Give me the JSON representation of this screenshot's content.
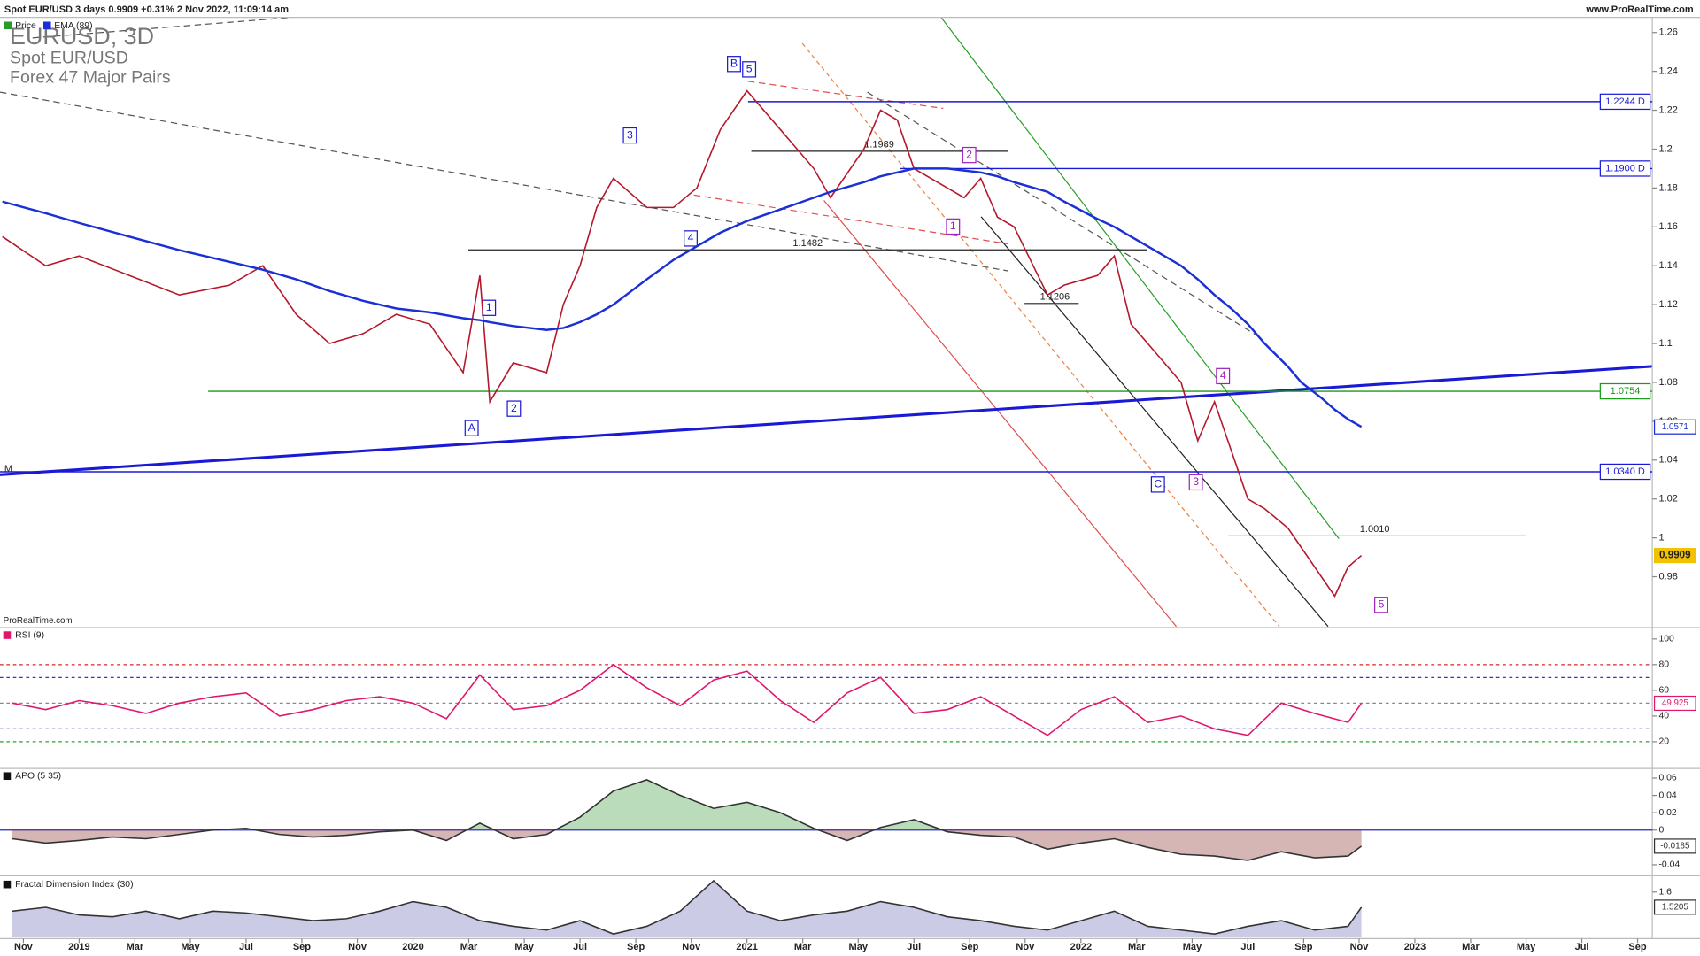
{
  "header": {
    "text": "Spot EUR/USD 3 days 0.9909 +0.31% 2 Nov 2022, 11:09:14 am",
    "site": "www.ProRealTime.com",
    "watermark": "ProRealTime.com"
  },
  "chart_data": [
    {
      "type": "line",
      "title": "EURUSD, 3D",
      "subtitles": [
        "Spot EUR/USD",
        "Forex 47 Major Pairs"
      ],
      "marker": "M",
      "x": [
        2018.77,
        2018.9,
        2019.0,
        2019.15,
        2019.3,
        2019.45,
        2019.55,
        2019.65,
        2019.75,
        2019.85,
        2019.95,
        2020.05,
        2020.15,
        2020.2,
        2020.23,
        2020.3,
        2020.4,
        2020.45,
        2020.5,
        2020.55,
        2020.6,
        2020.7,
        2020.78,
        2020.85,
        2020.92,
        2021.0,
        2021.1,
        2021.2,
        2021.25,
        2021.35,
        2021.4,
        2021.45,
        2021.5,
        2021.6,
        2021.65,
        2021.7,
        2021.75,
        2021.8,
        2021.9,
        2021.95,
        2022.05,
        2022.1,
        2022.15,
        2022.2,
        2022.3,
        2022.35,
        2022.4,
        2022.45,
        2022.5,
        2022.55,
        2022.62,
        2022.66,
        2022.72,
        2022.76,
        2022.8,
        2022.84
      ],
      "series": [
        {
          "name": "Price",
          "color": "#b5172b",
          "label_bg": "#f2c200",
          "values": [
            1.155,
            1.14,
            1.145,
            1.135,
            1.125,
            1.13,
            1.14,
            1.115,
            1.1,
            1.105,
            1.115,
            1.11,
            1.085,
            1.135,
            1.07,
            1.09,
            1.085,
            1.12,
            1.14,
            1.17,
            1.185,
            1.17,
            1.17,
            1.18,
            1.21,
            1.23,
            1.21,
            1.19,
            1.175,
            1.2,
            1.22,
            1.215,
            1.19,
            1.18,
            1.175,
            1.185,
            1.165,
            1.16,
            1.125,
            1.13,
            1.135,
            1.145,
            1.11,
            1.1,
            1.08,
            1.05,
            1.07,
            1.045,
            1.02,
            1.015,
            1.005,
            0.995,
            0.98,
            0.97,
            0.985,
            0.9909
          ]
        },
        {
          "name": "EMA (89)",
          "color": "#1b2fd6",
          "values": [
            1.173,
            1.167,
            1.162,
            1.155,
            1.148,
            1.142,
            1.138,
            1.133,
            1.127,
            1.122,
            1.118,
            1.116,
            1.113,
            1.112,
            1.111,
            1.109,
            1.107,
            1.108,
            1.111,
            1.115,
            1.12,
            1.133,
            1.143,
            1.15,
            1.157,
            1.163,
            1.169,
            1.175,
            1.178,
            1.183,
            1.186,
            1.188,
            1.19,
            1.19,
            1.189,
            1.188,
            1.186,
            1.183,
            1.178,
            1.173,
            1.164,
            1.16,
            1.155,
            1.15,
            1.14,
            1.133,
            1.125,
            1.118,
            1.11,
            1.1,
            1.088,
            1.08,
            1.072,
            1.066,
            1.061,
            1.0571
          ]
        }
      ],
      "ylim": [
        0.9544,
        1.2678
      ],
      "yticks": [
        0.98,
        1,
        1.02,
        1.04,
        1.06,
        1.08,
        1.1,
        1.12,
        1.14,
        1.16,
        1.18,
        1.2,
        1.22,
        1.24,
        1.26
      ],
      "levels": [
        {
          "value": 1.2244,
          "label": "1.2244 D",
          "color": "#1a1ad6"
        },
        {
          "value": 1.19,
          "label": "1.1900 D",
          "color": "#1a1ad6"
        },
        {
          "value": 1.0754,
          "label": "1.0754",
          "color": "#1a9a1a"
        },
        {
          "value": 1.034,
          "label": "1.0340 D",
          "color": "#1a1ad6"
        }
      ],
      "price_lines": [
        1.1482,
        1.1989,
        {
          "value": 1.001,
          "label": "1.0010"
        },
        1.1206
      ],
      "wave_labels": [
        "1",
        "A",
        "2",
        "3",
        "4",
        "B",
        "5",
        "C",
        "2",
        "1",
        "4",
        "3",
        "5"
      ]
    },
    {
      "type": "line",
      "title": "RSI (9)",
      "x": [
        2018.8,
        2018.9,
        2019.0,
        2019.1,
        2019.2,
        2019.3,
        2019.4,
        2019.5,
        2019.6,
        2019.7,
        2019.8,
        2019.9,
        2020.0,
        2020.1,
        2020.2,
        2020.3,
        2020.4,
        2020.5,
        2020.6,
        2020.7,
        2020.8,
        2020.9,
        2021.0,
        2021.1,
        2021.2,
        2021.3,
        2021.4,
        2021.5,
        2021.6,
        2021.7,
        2021.8,
        2021.9,
        2022.0,
        2022.1,
        2022.2,
        2022.3,
        2022.4,
        2022.5,
        2022.6,
        2022.7,
        2022.8,
        2022.84
      ],
      "series": [
        {
          "name": "RSI (9)",
          "color": "#e0176b",
          "values": [
            50,
            45,
            52,
            48,
            42,
            50,
            55,
            58,
            40,
            45,
            52,
            55,
            50,
            38,
            72,
            45,
            48,
            60,
            80,
            62,
            48,
            68,
            75,
            52,
            35,
            58,
            70,
            42,
            45,
            55,
            40,
            25,
            45,
            55,
            35,
            40,
            30,
            25,
            50,
            42,
            35,
            49.925
          ]
        }
      ],
      "ylim": [
        0,
        108
      ],
      "yticks": [
        20,
        40,
        60,
        80,
        100
      ],
      "ref_lines": [
        {
          "value": 80,
          "color": "#d22"
        },
        {
          "value": 70,
          "color": "#33c"
        },
        {
          "value": 50,
          "color": "#888"
        },
        {
          "value": 30,
          "color": "#33c"
        },
        {
          "value": 20,
          "color": "#2a2"
        }
      ]
    },
    {
      "type": "area",
      "title": "APO (5 35)",
      "x": [
        2018.8,
        2018.9,
        2019.0,
        2019.1,
        2019.2,
        2019.3,
        2019.4,
        2019.5,
        2019.6,
        2019.7,
        2019.8,
        2019.9,
        2020.0,
        2020.1,
        2020.2,
        2020.3,
        2020.4,
        2020.5,
        2020.6,
        2020.7,
        2020.8,
        2020.9,
        2021.0,
        2021.1,
        2021.2,
        2021.3,
        2021.4,
        2021.5,
        2021.6,
        2021.7,
        2021.8,
        2021.9,
        2022.0,
        2022.1,
        2022.2,
        2022.3,
        2022.4,
        2022.5,
        2022.6,
        2022.7,
        2022.8,
        2022.84
      ],
      "series": [
        {
          "name": "APO (5 35)",
          "color": "#333",
          "values": [
            -0.01,
            -0.015,
            -0.012,
            -0.008,
            -0.01,
            -0.005,
            0.0,
            0.002,
            -0.005,
            -0.008,
            -0.006,
            -0.002,
            0.0,
            -0.012,
            0.008,
            -0.01,
            -0.005,
            0.015,
            0.045,
            0.058,
            0.04,
            0.025,
            0.032,
            0.02,
            0.002,
            -0.012,
            0.003,
            0.012,
            -0.002,
            -0.006,
            -0.008,
            -0.022,
            -0.015,
            -0.01,
            -0.02,
            -0.028,
            -0.03,
            -0.035,
            -0.025,
            -0.032,
            -0.03,
            -0.0185
          ]
        }
      ],
      "ylim": [
        -0.0502,
        0.0698
      ],
      "yticks": [
        0.06,
        0.04,
        0.02,
        0,
        -0.04
      ],
      "zero_line": "#2222cc",
      "up_color": "#3a9a3a",
      "down_color": "#8a2a2a"
    },
    {
      "type": "area",
      "title": "Fractal Dimension Index (30)",
      "x": [
        2018.8,
        2018.9,
        2019.0,
        2019.1,
        2019.2,
        2019.3,
        2019.4,
        2019.5,
        2019.6,
        2019.7,
        2019.8,
        2019.9,
        2020.0,
        2020.1,
        2020.2,
        2020.3,
        2020.4,
        2020.5,
        2020.6,
        2020.7,
        2020.8,
        2020.9,
        2021.0,
        2021.1,
        2021.2,
        2021.3,
        2021.4,
        2021.5,
        2021.6,
        2021.7,
        2021.8,
        2021.9,
        2022.0,
        2022.1,
        2022.2,
        2022.3,
        2022.4,
        2022.5,
        2022.6,
        2022.7,
        2022.8,
        2022.84
      ],
      "series": [
        {
          "name": "Fractal Dimension Index (30)",
          "color": "#333",
          "values": [
            1.5,
            1.52,
            1.48,
            1.47,
            1.5,
            1.46,
            1.5,
            1.49,
            1.47,
            1.45,
            1.46,
            1.5,
            1.55,
            1.52,
            1.45,
            1.42,
            1.4,
            1.45,
            1.38,
            1.42,
            1.5,
            1.66,
            1.5,
            1.45,
            1.48,
            1.5,
            1.55,
            1.52,
            1.47,
            1.45,
            1.42,
            1.4,
            1.45,
            1.5,
            1.42,
            1.4,
            1.38,
            1.42,
            1.45,
            1.4,
            1.42,
            1.5205
          ]
        }
      ],
      "ylim": [
        1.361,
        1.674
      ],
      "yticks": [
        1.6
      ],
      "up_color": "#6a6ab8",
      "xlim": [
        2018.763,
        2023.711
      ],
      "xticks": [
        {
          "value": 2018.833,
          "label": "Nov"
        },
        {
          "value": 2019,
          "label": "2019"
        },
        {
          "value": 2019.167,
          "label": "Mar"
        },
        {
          "value": 2019.333,
          "label": "May"
        },
        {
          "value": 2019.5,
          "label": "Jul"
        },
        {
          "value": 2019.667,
          "label": "Sep"
        },
        {
          "value": 2019.833,
          "label": "Nov"
        },
        {
          "value": 2020,
          "label": "2020"
        },
        {
          "value": 2020.167,
          "label": "Mar"
        },
        {
          "value": 2020.333,
          "label": "May"
        },
        {
          "value": 2020.5,
          "label": "Jul"
        },
        {
          "value": 2020.667,
          "label": "Sep"
        },
        {
          "value": 2020.833,
          "label": "Nov"
        },
        {
          "value": 2021,
          "label": "2021"
        },
        {
          "value": 2021.167,
          "label": "Mar"
        },
        {
          "value": 2021.333,
          "label": "May"
        },
        {
          "value": 2021.5,
          "label": "Jul"
        },
        {
          "value": 2021.667,
          "label": "Sep"
        },
        {
          "value": 2021.833,
          "label": "Nov"
        },
        {
          "value": 2022,
          "label": "2022"
        },
        {
          "value": 2022.167,
          "label": "Mar"
        },
        {
          "value": 2022.333,
          "label": "May"
        },
        {
          "value": 2022.5,
          "label": "Jul"
        },
        {
          "value": 2022.667,
          "label": "Sep"
        },
        {
          "value": 2022.833,
          "label": "Nov"
        },
        {
          "value": 2023,
          "label": "2023"
        },
        {
          "value": 2023.167,
          "label": "Mar"
        },
        {
          "value": 2023.333,
          "label": "May"
        },
        {
          "value": 2023.5,
          "label": "Jul"
        },
        {
          "value": 2023.667,
          "label": "Sep"
        }
      ]
    }
  ]
}
